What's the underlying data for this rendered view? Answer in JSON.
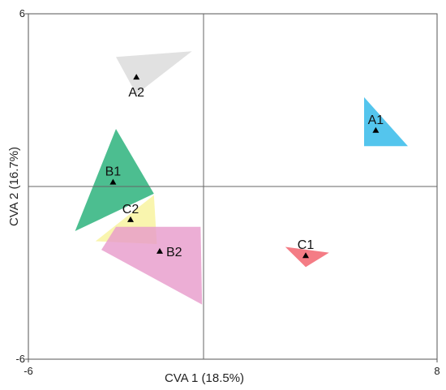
{
  "chart_data": {
    "type": "scatter",
    "xlabel": "CVA 1 (18.5%)",
    "ylabel": "CVA 2 (16.7%)",
    "xlim": [
      -6,
      8
    ],
    "ylim": [
      -6,
      6
    ],
    "x_ticks": [
      -6,
      8
    ],
    "x_tick_labels": [
      "-6",
      "8"
    ],
    "y_ticks": [
      6,
      -6
    ],
    "y_tick_labels": [
      "6",
      "-6"
    ],
    "reference_lines": {
      "x": 0,
      "y": 0
    },
    "grid": false,
    "groups": [
      {
        "name": "A2",
        "color": "#d9d9d9",
        "centroid": [
          -2.3,
          3.8
        ],
        "hull": [
          [
            -3.0,
            4.5
          ],
          [
            -0.4,
            4.7
          ],
          [
            -2.3,
            3.2
          ]
        ]
      },
      {
        "name": "A1",
        "color": "#29b6e8",
        "centroid": [
          5.9,
          1.95
        ],
        "hull": [
          [
            5.5,
            3.1
          ],
          [
            7.0,
            1.4
          ],
          [
            5.5,
            1.4
          ]
        ]
      },
      {
        "name": "B1",
        "color": "#1fae74",
        "centroid": [
          -3.1,
          0.15
        ],
        "hull": [
          [
            -3.0,
            2.0
          ],
          [
            -4.4,
            -1.55
          ],
          [
            -1.7,
            -0.25
          ]
        ]
      },
      {
        "name": "C2",
        "color": "#f7f29a",
        "centroid": [
          -2.5,
          -1.15
        ],
        "hull": [
          [
            -3.7,
            -1.9
          ],
          [
            -1.7,
            -0.3
          ],
          [
            -1.6,
            -2.0
          ]
        ]
      },
      {
        "name": "B2",
        "color": "#e79acb",
        "centroid": [
          -1.5,
          -2.25
        ],
        "hull": [
          [
            -3.5,
            -2.2
          ],
          [
            -3.0,
            -1.4
          ],
          [
            -0.1,
            -1.4
          ],
          [
            -0.05,
            -4.1
          ]
        ]
      },
      {
        "name": "C1",
        "color": "#f15b66",
        "centroid": [
          3.5,
          -2.4
        ],
        "hull": [
          [
            2.8,
            -2.1
          ],
          [
            4.3,
            -2.3
          ],
          [
            3.5,
            -2.8
          ]
        ]
      }
    ]
  }
}
